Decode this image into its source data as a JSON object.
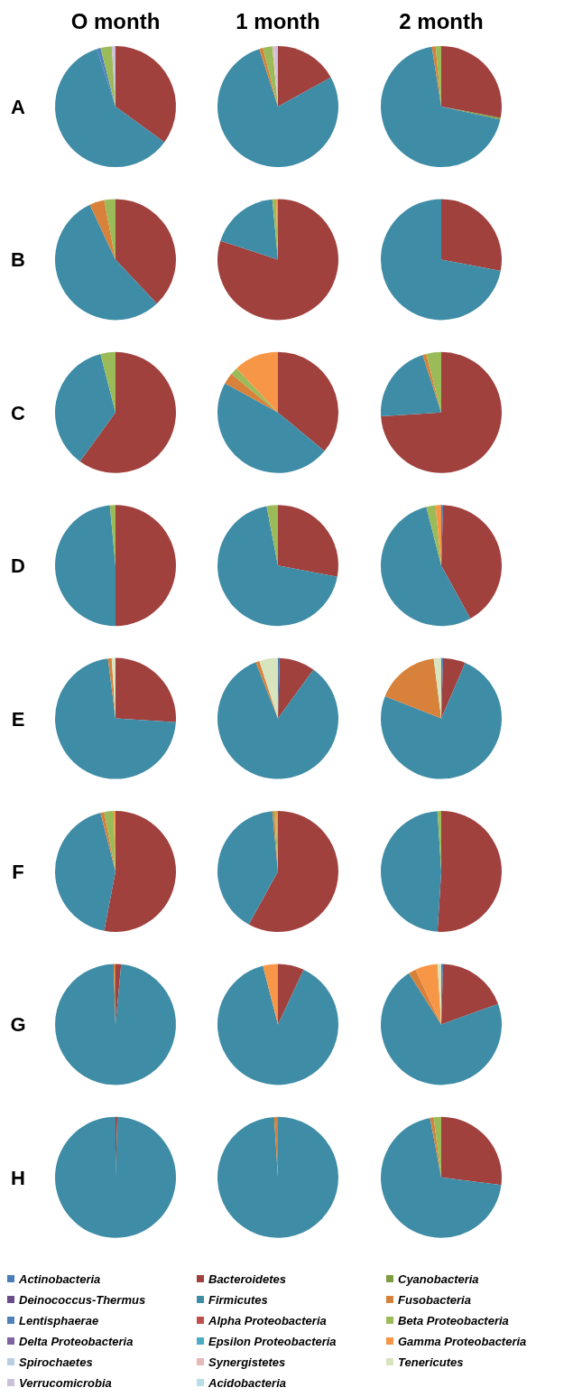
{
  "chart_data": [
    {
      "type": "pie",
      "title": "O month",
      "ylabel": "A",
      "colors": [
        "#4a7ebb",
        "#a0413e",
        "#7e9c40",
        "#6a4c8a",
        "#3f8ca6",
        "#d7813a",
        "#4f81bd",
        "#c0504d",
        "#9bbb59",
        "#8064a2",
        "#4bacc6",
        "#f79646",
        "#b9cde5",
        "#e6b9b8",
        "#d7e4bd",
        "#ccc1da",
        "#b7dee8"
      ],
      "values": [
        0,
        35,
        0,
        0,
        60,
        0,
        1,
        0,
        3,
        0,
        0,
        0,
        0,
        0,
        0,
        1,
        0
      ]
    },
    {
      "type": "pie",
      "title": "1 month",
      "colors": [
        "#4a7ebb",
        "#a0413e",
        "#7e9c40",
        "#6a4c8a",
        "#3f8ca6",
        "#d7813a",
        "#4f81bd",
        "#c0504d",
        "#9bbb59",
        "#8064a2",
        "#4bacc6",
        "#f79646",
        "#b9cde5",
        "#e6b9b8",
        "#d7e4bd",
        "#ccc1da",
        "#b7dee8"
      ],
      "values": [
        0,
        17,
        0,
        0,
        78,
        1,
        0,
        0,
        2.5,
        0,
        0,
        0,
        0,
        0.5,
        0,
        1,
        0
      ]
    },
    {
      "type": "pie",
      "title": "2 month",
      "colors": [
        "#4a7ebb",
        "#a0413e",
        "#7e9c40",
        "#6a4c8a",
        "#3f8ca6",
        "#d7813a",
        "#4f81bd",
        "#c0504d",
        "#9bbb59",
        "#8064a2",
        "#4bacc6",
        "#f79646",
        "#b9cde5",
        "#e6b9b8",
        "#d7e4bd",
        "#ccc1da",
        "#b7dee8"
      ],
      "values": [
        0,
        28,
        0.5,
        0,
        69,
        1,
        0,
        0,
        1.5,
        0,
        0,
        0,
        0,
        0,
        0,
        0,
        0
      ]
    },
    {
      "type": "pie",
      "ylabel": "B",
      "colors": [
        "#4a7ebb",
        "#a0413e",
        "#7e9c40",
        "#6a4c8a",
        "#3f8ca6",
        "#d7813a",
        "#4f81bd",
        "#c0504d",
        "#9bbb59",
        "#8064a2",
        "#4bacc6",
        "#f79646",
        "#b9cde5",
        "#e6b9b8",
        "#d7e4bd",
        "#ccc1da",
        "#b7dee8"
      ],
      "values": [
        0,
        38,
        0,
        0,
        55,
        4,
        0,
        0,
        3,
        0,
        0,
        0,
        0,
        0,
        0,
        0,
        0
      ]
    },
    {
      "type": "pie",
      "colors": [
        "#4a7ebb",
        "#a0413e",
        "#7e9c40",
        "#6a4c8a",
        "#3f8ca6",
        "#d7813a",
        "#4f81bd",
        "#c0504d",
        "#9bbb59",
        "#8064a2",
        "#4bacc6",
        "#f79646",
        "#b9cde5",
        "#e6b9b8",
        "#d7e4bd",
        "#ccc1da",
        "#b7dee8"
      ],
      "values": [
        0,
        80,
        0,
        0,
        18.5,
        0,
        0,
        0,
        1,
        0,
        0,
        0.5,
        0,
        0,
        0,
        0,
        0
      ]
    },
    {
      "type": "pie",
      "colors": [
        "#4a7ebb",
        "#a0413e",
        "#7e9c40",
        "#6a4c8a",
        "#3f8ca6",
        "#d7813a",
        "#4f81bd",
        "#c0504d",
        "#9bbb59",
        "#8064a2",
        "#4bacc6",
        "#f79646",
        "#b9cde5",
        "#e6b9b8",
        "#d7e4bd",
        "#ccc1da",
        "#b7dee8"
      ],
      "values": [
        0,
        28,
        0,
        0,
        72,
        0,
        0,
        0,
        0,
        0,
        0,
        0,
        0,
        0,
        0,
        0,
        0
      ]
    },
    {
      "type": "pie",
      "ylabel": "C",
      "colors": [
        "#4a7ebb",
        "#a0413e",
        "#7e9c40",
        "#6a4c8a",
        "#3f8ca6",
        "#d7813a",
        "#4f81bd",
        "#c0504d",
        "#9bbb59",
        "#8064a2",
        "#4bacc6",
        "#f79646",
        "#b9cde5",
        "#e6b9b8",
        "#d7e4bd",
        "#ccc1da",
        "#b7dee8"
      ],
      "values": [
        0,
        60,
        0,
        0,
        36,
        0,
        0,
        0,
        4,
        0,
        0,
        0,
        0,
        0,
        0,
        0,
        0
      ]
    },
    {
      "type": "pie",
      "colors": [
        "#4a7ebb",
        "#a0413e",
        "#7e9c40",
        "#6a4c8a",
        "#3f8ca6",
        "#d7813a",
        "#4f81bd",
        "#c0504d",
        "#9bbb59",
        "#8064a2",
        "#4bacc6",
        "#f79646",
        "#b9cde5",
        "#e6b9b8",
        "#d7e4bd",
        "#ccc1da",
        "#b7dee8"
      ],
      "values": [
        0,
        36,
        0,
        0,
        47,
        3,
        0,
        0,
        2,
        0,
        0,
        12,
        0,
        0,
        0,
        0,
        0
      ]
    },
    {
      "type": "pie",
      "colors": [
        "#4a7ebb",
        "#a0413e",
        "#7e9c40",
        "#6a4c8a",
        "#3f8ca6",
        "#d7813a",
        "#4f81bd",
        "#c0504d",
        "#9bbb59",
        "#8064a2",
        "#4bacc6",
        "#f79646",
        "#b9cde5",
        "#e6b9b8",
        "#d7e4bd",
        "#ccc1da",
        "#b7dee8"
      ],
      "values": [
        0,
        74,
        0,
        0,
        21,
        1,
        0,
        0,
        4,
        0,
        0,
        0,
        0,
        0,
        0,
        0,
        0
      ]
    },
    {
      "type": "pie",
      "ylabel": "D",
      "colors": [
        "#4a7ebb",
        "#a0413e",
        "#7e9c40",
        "#6a4c8a",
        "#3f8ca6",
        "#d7813a",
        "#4f81bd",
        "#c0504d",
        "#9bbb59",
        "#8064a2",
        "#4bacc6",
        "#f79646",
        "#b9cde5",
        "#e6b9b8",
        "#d7e4bd",
        "#ccc1da",
        "#b7dee8"
      ],
      "values": [
        0,
        50,
        0,
        0,
        48.5,
        0,
        0,
        0,
        1.5,
        0,
        0,
        0,
        0,
        0,
        0,
        0,
        0
      ]
    },
    {
      "type": "pie",
      "colors": [
        "#4a7ebb",
        "#a0413e",
        "#7e9c40",
        "#6a4c8a",
        "#3f8ca6",
        "#d7813a",
        "#4f81bd",
        "#c0504d",
        "#9bbb59",
        "#8064a2",
        "#4bacc6",
        "#f79646",
        "#b9cde5",
        "#e6b9b8",
        "#d7e4bd",
        "#ccc1da",
        "#b7dee8"
      ],
      "values": [
        0,
        28,
        0,
        0,
        69,
        0,
        0,
        0,
        3,
        0,
        0,
        0,
        0,
        0,
        0,
        0,
        0
      ]
    },
    {
      "type": "pie",
      "colors": [
        "#4a7ebb",
        "#a0413e",
        "#7e9c40",
        "#6a4c8a",
        "#3f8ca6",
        "#d7813a",
        "#4f81bd",
        "#c0504d",
        "#9bbb59",
        "#8064a2",
        "#4bacc6",
        "#f79646",
        "#b9cde5",
        "#e6b9b8",
        "#d7e4bd",
        "#ccc1da",
        "#b7dee8"
      ],
      "values": [
        0.5,
        41.5,
        0,
        0,
        54,
        0,
        0,
        0,
        2.5,
        0,
        0,
        1.5,
        0,
        0,
        0,
        0,
        0
      ]
    },
    {
      "type": "pie",
      "ylabel": "E",
      "colors": [
        "#4a7ebb",
        "#a0413e",
        "#7e9c40",
        "#6a4c8a",
        "#3f8ca6",
        "#d7813a",
        "#4f81bd",
        "#c0504d",
        "#9bbb59",
        "#8064a2",
        "#4bacc6",
        "#f79646",
        "#b9cde5",
        "#e6b9b8",
        "#d7e4bd",
        "#ccc1da",
        "#b7dee8"
      ],
      "values": [
        0,
        26,
        0,
        0,
        72,
        1,
        0,
        0,
        0,
        0,
        0,
        0,
        0,
        0,
        1,
        0,
        0
      ]
    },
    {
      "type": "pie",
      "colors": [
        "#4a7ebb",
        "#a0413e",
        "#7e9c40",
        "#6a4c8a",
        "#3f8ca6",
        "#d7813a",
        "#4f81bd",
        "#c0504d",
        "#9bbb59",
        "#8064a2",
        "#4bacc6",
        "#f79646",
        "#b9cde5",
        "#e6b9b8",
        "#d7e4bd",
        "#ccc1da",
        "#b7dee8"
      ],
      "values": [
        0.5,
        9.5,
        0,
        0,
        84,
        1,
        0,
        0,
        0,
        0,
        0,
        0,
        0,
        0,
        5,
        0,
        0
      ]
    },
    {
      "type": "pie",
      "colors": [
        "#4a7ebb",
        "#a0413e",
        "#7e9c40",
        "#6a4c8a",
        "#3f8ca6",
        "#d7813a",
        "#4f81bd",
        "#c0504d",
        "#9bbb59",
        "#8064a2",
        "#4bacc6",
        "#f79646",
        "#b9cde5",
        "#e6b9b8",
        "#d7e4bd",
        "#ccc1da",
        "#b7dee8"
      ],
      "values": [
        0.5,
        6,
        0,
        0,
        74.5,
        17,
        0,
        0,
        0,
        0,
        0,
        0,
        0,
        0,
        2,
        0,
        0
      ]
    },
    {
      "type": "pie",
      "ylabel": "F",
      "colors": [
        "#4a7ebb",
        "#a0413e",
        "#7e9c40",
        "#6a4c8a",
        "#3f8ca6",
        "#d7813a",
        "#4f81bd",
        "#c0504d",
        "#9bbb59",
        "#8064a2",
        "#4bacc6",
        "#f79646",
        "#b9cde5",
        "#e6b9b8",
        "#d7e4bd",
        "#ccc1da",
        "#b7dee8"
      ],
      "values": [
        0,
        53,
        0,
        0,
        43,
        1,
        0,
        0,
        2.5,
        0,
        0,
        0.5,
        0,
        0,
        0,
        0,
        0
      ]
    },
    {
      "type": "pie",
      "colors": [
        "#4a7ebb",
        "#a0413e",
        "#7e9c40",
        "#6a4c8a",
        "#3f8ca6",
        "#d7813a",
        "#4f81bd",
        "#c0504d",
        "#9bbb59",
        "#8064a2",
        "#4bacc6",
        "#f79646",
        "#b9cde5",
        "#e6b9b8",
        "#d7e4bd",
        "#ccc1da",
        "#b7dee8"
      ],
      "values": [
        0,
        58,
        0,
        0,
        40.5,
        0.5,
        0,
        0,
        0.5,
        0,
        0,
        0.5,
        0,
        0,
        0,
        0,
        0
      ]
    },
    {
      "type": "pie",
      "colors": [
        "#4a7ebb",
        "#a0413e",
        "#7e9c40",
        "#6a4c8a",
        "#3f8ca6",
        "#d7813a",
        "#4f81bd",
        "#c0504d",
        "#9bbb59",
        "#8064a2",
        "#4bacc6",
        "#f79646",
        "#b9cde5",
        "#e6b9b8",
        "#d7e4bd",
        "#ccc1da",
        "#b7dee8"
      ],
      "values": [
        0,
        51,
        0,
        0,
        48,
        0,
        0,
        0,
        1,
        0,
        0,
        0,
        0,
        0,
        0,
        0,
        0
      ]
    },
    {
      "type": "pie",
      "ylabel": "G",
      "colors": [
        "#4a7ebb",
        "#a0413e",
        "#7e9c40",
        "#6a4c8a",
        "#3f8ca6",
        "#d7813a",
        "#4f81bd",
        "#c0504d",
        "#9bbb59",
        "#8064a2",
        "#4bacc6",
        "#f79646",
        "#b9cde5",
        "#e6b9b8",
        "#d7e4bd",
        "#ccc1da",
        "#b7dee8"
      ],
      "values": [
        0,
        1.5,
        0,
        0,
        98,
        0.5,
        0,
        0,
        0,
        0,
        0,
        0,
        0,
        0,
        0,
        0,
        0
      ]
    },
    {
      "type": "pie",
      "colors": [
        "#4a7ebb",
        "#a0413e",
        "#7e9c40",
        "#6a4c8a",
        "#3f8ca6",
        "#d7813a",
        "#4f81bd",
        "#c0504d",
        "#9bbb59",
        "#8064a2",
        "#4bacc6",
        "#f79646",
        "#b9cde5",
        "#e6b9b8",
        "#d7e4bd",
        "#ccc1da",
        "#b7dee8"
      ],
      "values": [
        0,
        7,
        0,
        0,
        89,
        0,
        0,
        0,
        0,
        0,
        0,
        4,
        0,
        0,
        0,
        0,
        0
      ]
    },
    {
      "type": "pie",
      "colors": [
        "#4a7ebb",
        "#a0413e",
        "#7e9c40",
        "#6a4c8a",
        "#3f8ca6",
        "#d7813a",
        "#4f81bd",
        "#c0504d",
        "#9bbb59",
        "#8064a2",
        "#4bacc6",
        "#f79646",
        "#b9cde5",
        "#e6b9b8",
        "#d7e4bd",
        "#ccc1da",
        "#b7dee8"
      ],
      "values": [
        0.5,
        19,
        0,
        0,
        71.5,
        2,
        0,
        0,
        0,
        0,
        0,
        6,
        0,
        0,
        1,
        0,
        0
      ]
    },
    {
      "type": "pie",
      "ylabel": "H",
      "colors": [
        "#4a7ebb",
        "#a0413e",
        "#7e9c40",
        "#6a4c8a",
        "#3f8ca6",
        "#d7813a",
        "#4f81bd",
        "#c0504d",
        "#9bbb59",
        "#8064a2",
        "#4bacc6",
        "#f79646",
        "#b9cde5",
        "#e6b9b8",
        "#d7e4bd",
        "#ccc1da",
        "#b7dee8"
      ],
      "values": [
        0,
        0.5,
        0,
        0,
        99.5,
        0,
        0,
        0,
        0,
        0,
        0,
        0,
        0,
        0,
        0,
        0,
        0
      ]
    },
    {
      "type": "pie",
      "colors": [
        "#4a7ebb",
        "#a0413e",
        "#7e9c40",
        "#6a4c8a",
        "#3f8ca6",
        "#d7813a",
        "#4f81bd",
        "#c0504d",
        "#9bbb59",
        "#8064a2",
        "#4bacc6",
        "#f79646",
        "#b9cde5",
        "#e6b9b8",
        "#d7e4bd",
        "#ccc1da",
        "#b7dee8"
      ],
      "values": [
        0,
        0,
        0,
        0,
        99,
        1,
        0,
        0,
        0,
        0,
        0,
        0,
        0,
        0,
        0,
        0,
        0
      ]
    },
    {
      "type": "pie",
      "legend": "bottom",
      "categories": [
        "Actinobacteria",
        "Bacteroidetes",
        "Cyanobacteria",
        "Deinococcus-Thermus",
        "Firmicutes",
        "Fusobacteria",
        "Lentisphaerae",
        "Alpha Proteobacteria",
        "Beta Proteobacteria",
        "Delta Proteobacteria",
        "Epsilon Proteobacteria",
        "Gamma Proteobacteria",
        "Spirochaetes",
        "Synergistetes",
        "Tenericutes",
        "Verrucomicrobia",
        "Acidobacteria"
      ],
      "colors": [
        "#4a7ebb",
        "#a0413e",
        "#7e9c40",
        "#6a4c8a",
        "#3f8ca6",
        "#d7813a",
        "#4f81bd",
        "#c0504d",
        "#9bbb59",
        "#8064a2",
        "#4bacc6",
        "#f79646",
        "#b9cde5",
        "#e6b9b8",
        "#d7e4bd",
        "#ccc1da",
        "#b7dee8"
      ],
      "values": [
        0,
        27,
        0,
        0,
        70,
        1,
        0,
        0,
        2,
        0,
        0,
        0,
        0,
        0,
        0,
        0,
        0
      ]
    }
  ]
}
